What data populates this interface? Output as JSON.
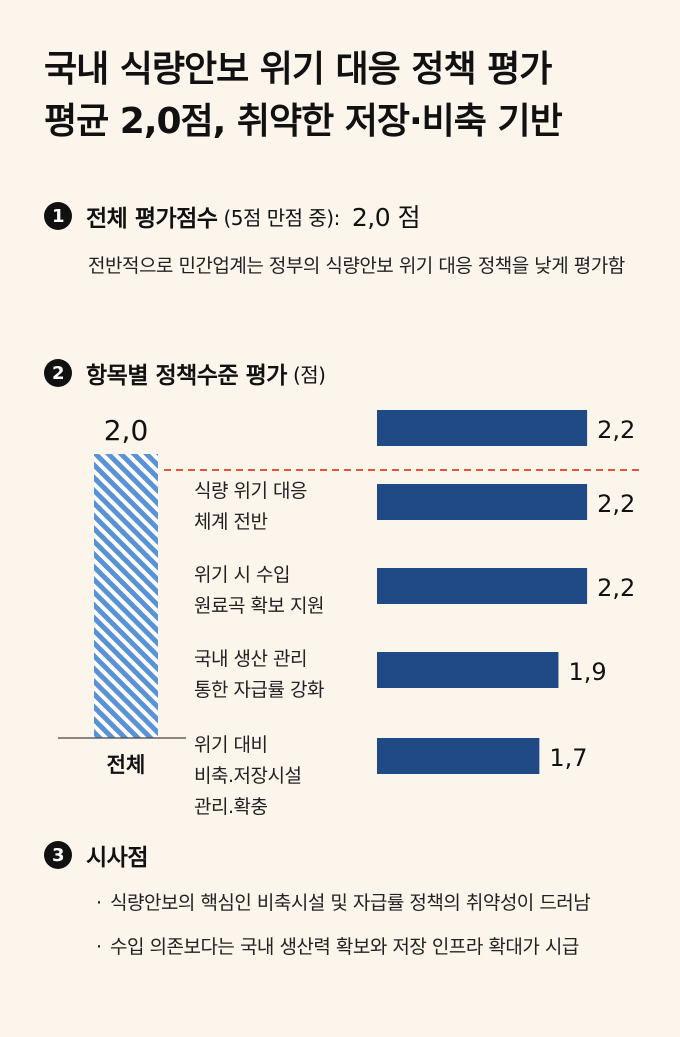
{
  "title": {
    "line1": "국내 식량안보 위기 대응 정책 평가",
    "line2": "평균 2,0점, 취약한 저장·비축 기반"
  },
  "section1": {
    "number": "1",
    "heading": "전체 평가점수",
    "subheading": "(5점 만점 중):",
    "score": "2,0 점",
    "description": "전반적으로 민간업계는 정부의 식량안보 위기 대응 정책을 낮게 평가함"
  },
  "section2": {
    "number": "2",
    "heading": "항목별 정책수준 평가",
    "unit": "(점)"
  },
  "section3": {
    "number": "3",
    "heading": "시사점",
    "bullets": [
      "식량안보의 핵심인 비축시설 및 자급률 정책의 취약성이 드러남",
      "수입 의존보다는 국내 생산력 확보와 저장 인프라 확대가 시급"
    ]
  },
  "chart_data": {
    "type": "bar",
    "overall": {
      "label": "전체",
      "value": 2.0,
      "display": "2,0"
    },
    "reference_line": 2.0,
    "categories": [
      "",
      "식량 위기 대응\n체계 전반",
      "위기 시 수입\n원료곡 확보 지원",
      "국내 생산 관리\n통한 자급률 강화",
      "위기 대비\n비축.저장시설\n관리.확충"
    ],
    "values": [
      2.2,
      2.2,
      2.2,
      1.9,
      1.7
    ],
    "value_labels": [
      "2,2",
      "2,2",
      "2,2",
      "1,9",
      "1,7"
    ],
    "colors": {
      "bar": "#1f4a85",
      "overall_stripe_a": "#5a92d6",
      "overall_stripe_b": "#ffffff",
      "reference": "#e8533a"
    }
  }
}
